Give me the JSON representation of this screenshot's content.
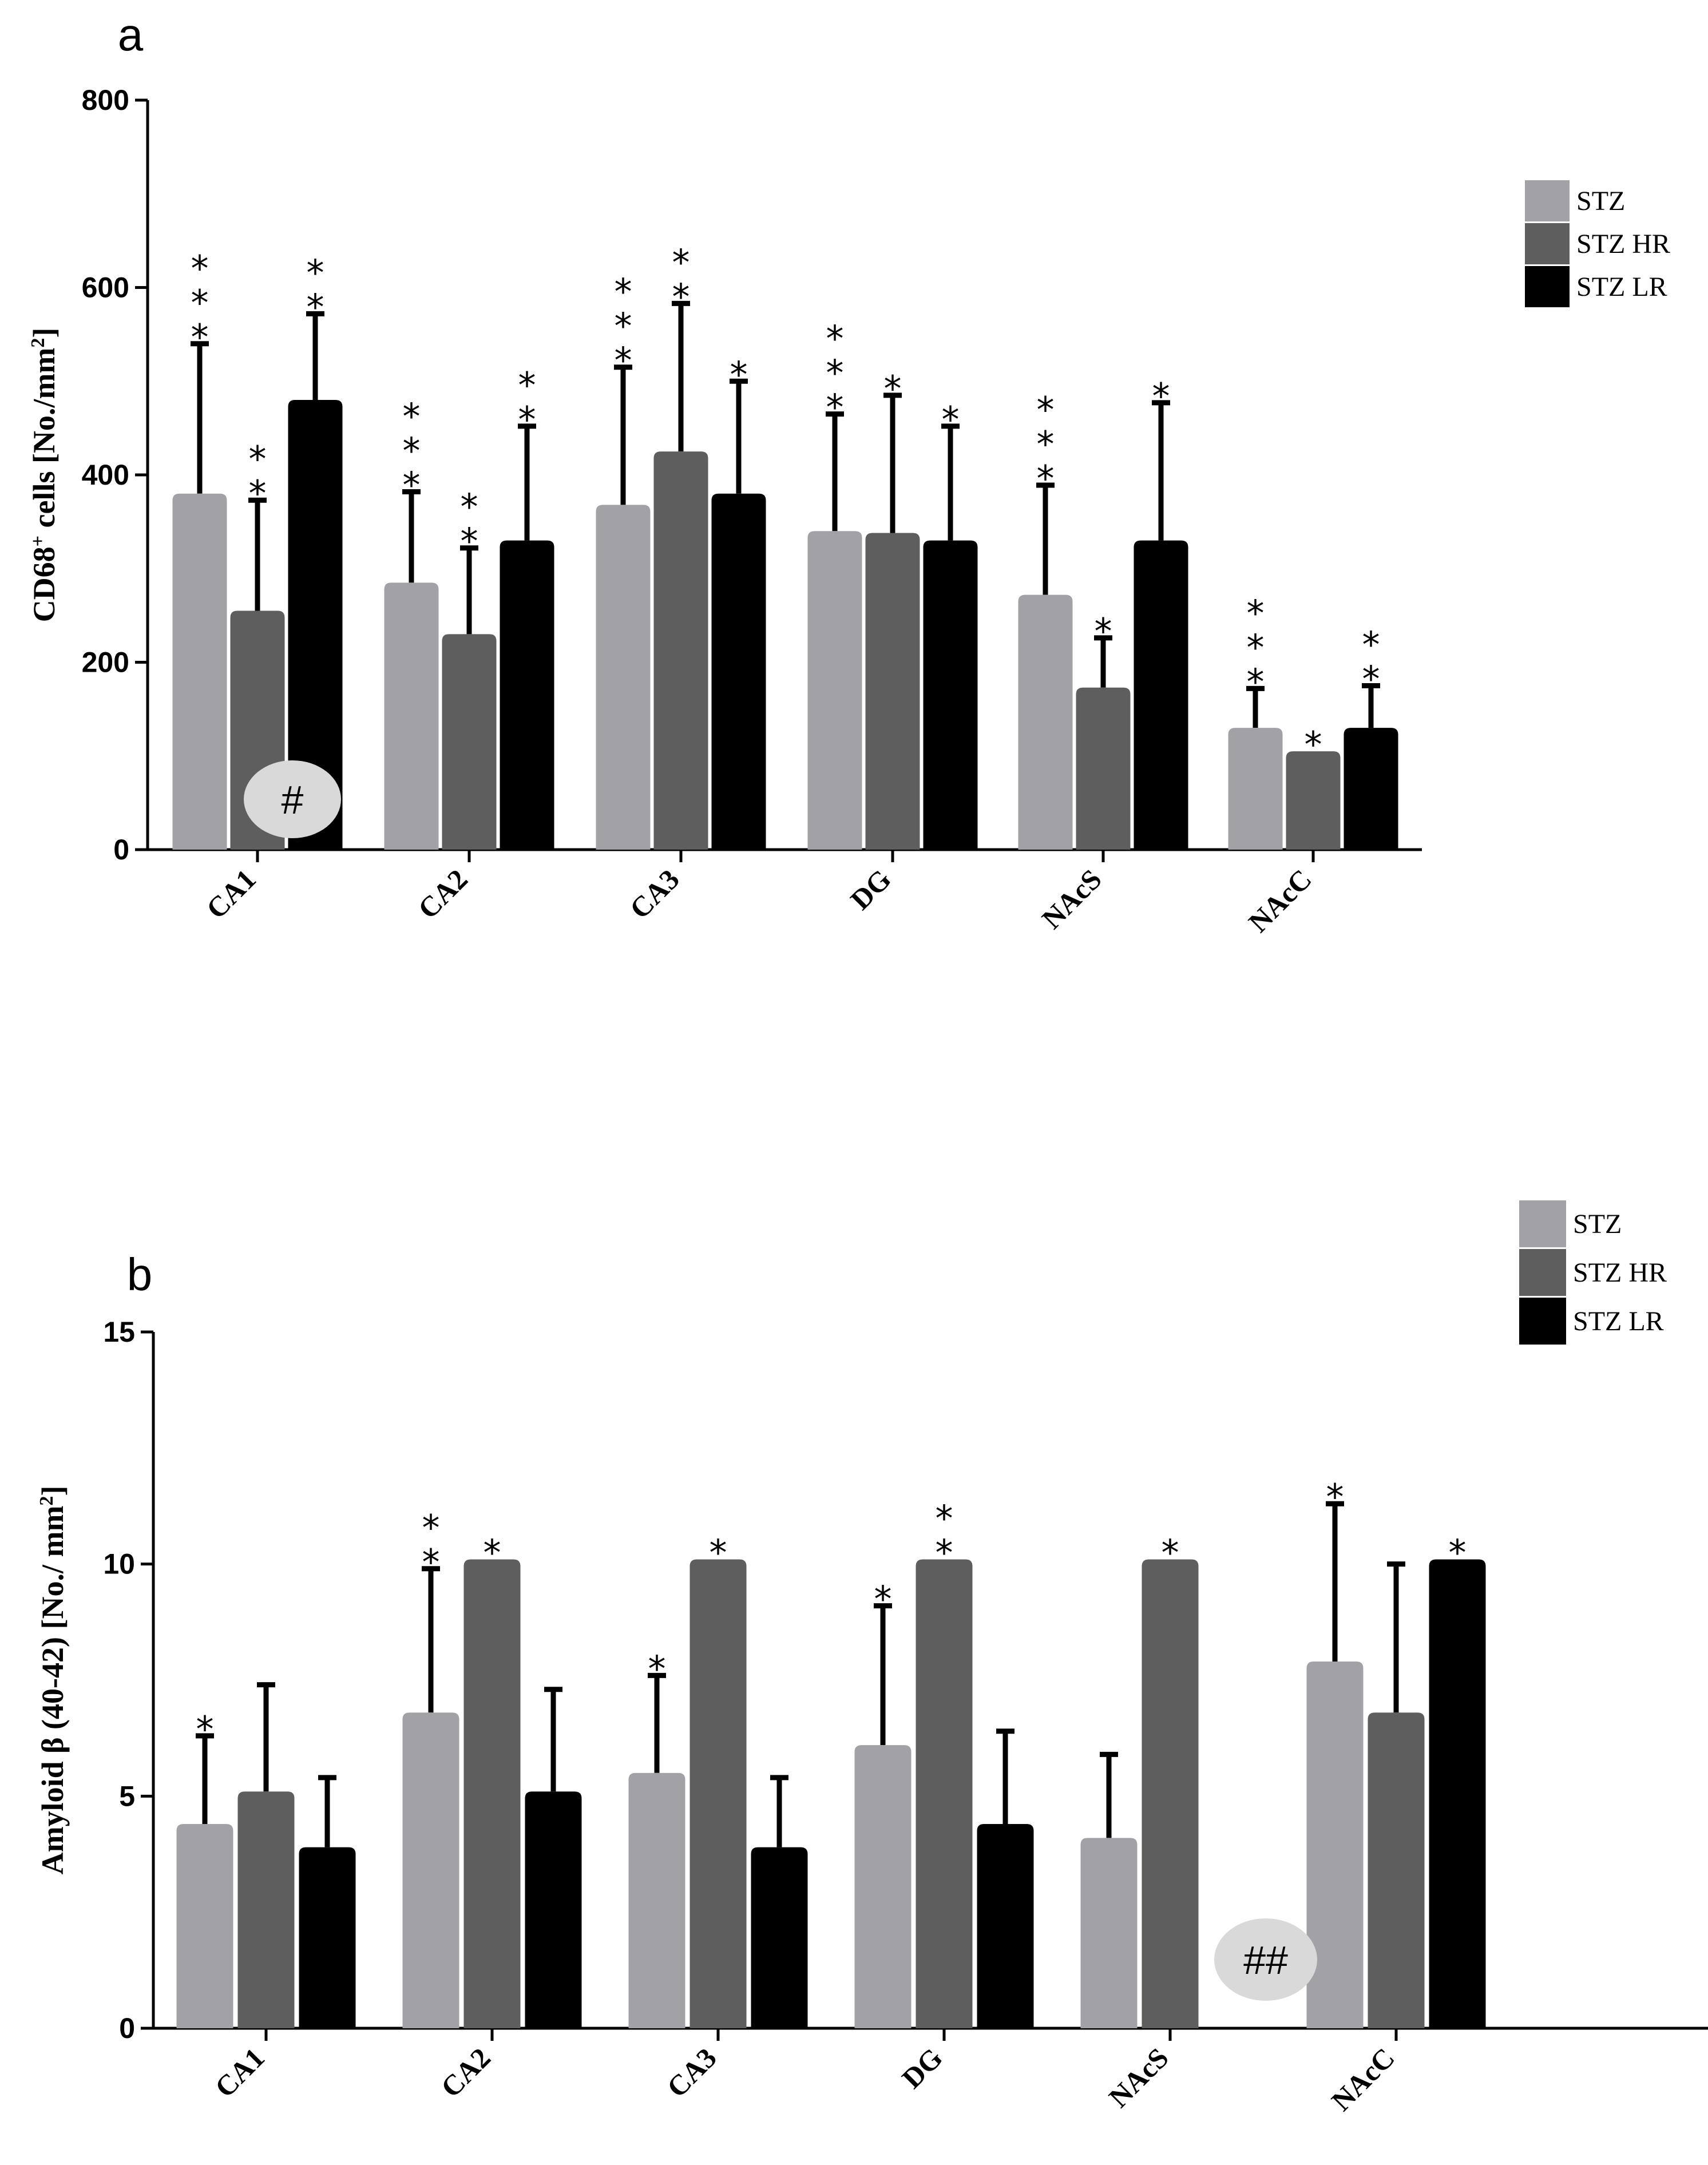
{
  "chart_data": [
    {
      "type": "bar",
      "panel": "a",
      "title": "",
      "xlabel": "",
      "ylabel": "CD68",
      "ylabel_sup": "+",
      "ylabel_rest": " cells [No./mm",
      "ylabel_sup2": "2",
      "ylabel_end": "]",
      "ylim": [
        0,
        800
      ],
      "yticks": [
        "0",
        "200",
        "400",
        "600",
        "800"
      ],
      "categories": [
        "CA1",
        "CA2",
        "CA3",
        "DG",
        "NAcS",
        "NAcC"
      ],
      "series": [
        {
          "name": "STZ",
          "color": "#a2a2a6",
          "values": [
            380,
            285,
            368,
            340,
            272,
            130
          ],
          "errors": [
            160,
            97,
            147,
            125,
            117,
            42
          ],
          "stars": [
            "***",
            "***",
            "***",
            "***",
            "***",
            "***"
          ]
        },
        {
          "name": "STZ HR",
          "color": "#5e5e5e",
          "values": [
            255,
            230,
            425,
            338,
            173,
            105
          ],
          "errors": [
            118,
            92,
            158,
            147,
            53,
            0
          ],
          "stars": [
            "**",
            "**",
            "**",
            "*",
            "*",
            "*"
          ]
        },
        {
          "name": "STZ LR",
          "color": "#000000",
          "values": [
            480,
            330,
            380,
            330,
            330,
            130
          ],
          "errors": [
            92,
            122,
            120,
            122,
            147,
            45
          ],
          "stars": [
            "**",
            "**",
            "*",
            "*",
            "*",
            "**"
          ]
        }
      ],
      "legend": [
        "STZ",
        "STZ HR",
        "STZ LR"
      ],
      "legend_position": "top-right",
      "annotation": {
        "text": "#",
        "category": "CA1"
      }
    },
    {
      "type": "bar",
      "panel": "b",
      "title": "",
      "xlabel": "",
      "ylabel": "Amyloid β (40-42) [No./ mm",
      "ylabel_sup": "2",
      "ylabel_end": "]",
      "ylim": [
        0,
        15
      ],
      "yticks": [
        "0",
        "5",
        "10",
        "15"
      ],
      "categories": [
        "CA1",
        "CA2",
        "CA3",
        "DG",
        "NAcS",
        "NAcC"
      ],
      "series": [
        {
          "name": "STZ",
          "color": "#a2a2a6",
          "values": [
            4.4,
            6.8,
            5.5,
            6.1,
            4.1,
            7.9
          ],
          "errors": [
            1.9,
            3.1,
            2.1,
            3.0,
            1.8,
            3.4
          ],
          "stars": [
            "*",
            "**",
            "*",
            "*",
            "",
            "*"
          ]
        },
        {
          "name": "STZ HR",
          "color": "#5e5e5e",
          "values": [
            5.1,
            10.1,
            10.1,
            10.1,
            10.1,
            6.8
          ],
          "errors": [
            2.3,
            0,
            0,
            0,
            0,
            3.2
          ],
          "stars": [
            "",
            "*",
            "*",
            "**",
            "*",
            ""
          ]
        },
        {
          "name": "STZ LR",
          "color": "#000000",
          "values": [
            3.9,
            5.1,
            3.9,
            4.4,
            0,
            10.1
          ],
          "errors": [
            1.5,
            2.2,
            1.5,
            2.0,
            0,
            0
          ],
          "stars": [
            "",
            "",
            "",
            "",
            "",
            "*"
          ]
        }
      ],
      "legend": [
        "STZ",
        "STZ HR",
        "STZ LR"
      ],
      "legend_position": "top-right",
      "annotation": {
        "text": "##",
        "category": "NAcS"
      }
    }
  ]
}
